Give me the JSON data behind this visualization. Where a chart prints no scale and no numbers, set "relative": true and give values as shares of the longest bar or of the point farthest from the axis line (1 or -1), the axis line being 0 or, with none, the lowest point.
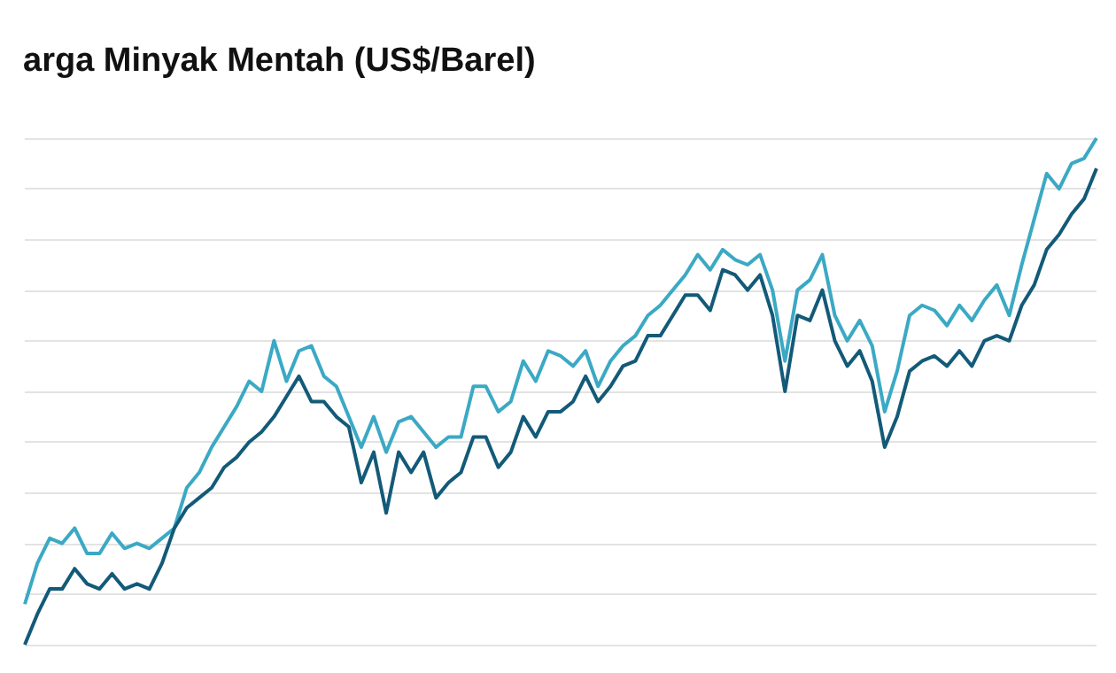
{
  "chart_data": {
    "type": "line",
    "title": "arga Minyak Mentah (US$/Barel)",
    "relative": true,
    "grid": "y",
    "marker": "none",
    "line_style": "solid",
    "categories": [
      null,
      null,
      null,
      null,
      null,
      null,
      null,
      null,
      null,
      null,
      null,
      null,
      null,
      null,
      null,
      null,
      null,
      null,
      null,
      null,
      null,
      null,
      null,
      null,
      null,
      null,
      null,
      null,
      null,
      null,
      null,
      null,
      null,
      null,
      null,
      null,
      null,
      null,
      null,
      null,
      null,
      null,
      null,
      null,
      null,
      null,
      null,
      null,
      null,
      null,
      null,
      null,
      null,
      null,
      null,
      null,
      null,
      null,
      null,
      null,
      null,
      null,
      null,
      null,
      null,
      null,
      null,
      null,
      null,
      null,
      null,
      null,
      null,
      null,
      null,
      null,
      null,
      null,
      null,
      null,
      null,
      null,
      null,
      null,
      null,
      null,
      null
    ],
    "series": [
      {
        "color": "#3ba9c4",
        "values": [
          0.08,
          0.16,
          0.21,
          0.2,
          0.23,
          0.18,
          0.18,
          0.22,
          0.19,
          0.2,
          0.19,
          0.21,
          0.23,
          0.31,
          0.34,
          0.39,
          0.43,
          0.47,
          0.52,
          0.5,
          0.6,
          0.52,
          0.58,
          0.59,
          0.53,
          0.51,
          0.45,
          0.39,
          0.45,
          0.38,
          0.44,
          0.45,
          0.42,
          0.39,
          0.41,
          0.41,
          0.51,
          0.51,
          0.46,
          0.48,
          0.56,
          0.52,
          0.58,
          0.57,
          0.55,
          0.58,
          0.51,
          0.56,
          0.59,
          0.61,
          0.65,
          0.67,
          0.7,
          0.73,
          0.77,
          0.74,
          0.78,
          0.76,
          0.75,
          0.77,
          0.7,
          0.56,
          0.7,
          0.72,
          0.77,
          0.65,
          0.6,
          0.64,
          0.59,
          0.46,
          0.54,
          0.65,
          0.67,
          0.66,
          0.63,
          0.67,
          0.64,
          0.68,
          0.71,
          0.65,
          0.75,
          0.84,
          0.93,
          0.9,
          0.95,
          0.96,
          1
        ]
      },
      {
        "color": "#135a78",
        "values": [
          0,
          0.06,
          0.11,
          0.11,
          0.15,
          0.12,
          0.11,
          0.14,
          0.11,
          0.12,
          0.11,
          0.16,
          0.23,
          0.27,
          0.29,
          0.31,
          0.35,
          0.37,
          0.4,
          0.42,
          0.45,
          0.49,
          0.53,
          0.48,
          0.48,
          0.45,
          0.43,
          0.32,
          0.38,
          0.26,
          0.38,
          0.34,
          0.38,
          0.29,
          0.32,
          0.34,
          0.41,
          0.41,
          0.35,
          0.38,
          0.45,
          0.41,
          0.46,
          0.46,
          0.48,
          0.53,
          0.48,
          0.51,
          0.55,
          0.56,
          0.61,
          0.61,
          0.65,
          0.69,
          0.69,
          0.66,
          0.74,
          0.73,
          0.7,
          0.73,
          0.65,
          0.5,
          0.65,
          0.64,
          0.7,
          0.6,
          0.55,
          0.58,
          0.52,
          0.39,
          0.45,
          0.54,
          0.56,
          0.57,
          0.55,
          0.58,
          0.55,
          0.6,
          0.61,
          0.6,
          0.67,
          0.71,
          0.78,
          0.81,
          0.85,
          0.88,
          0.94
        ]
      }
    ]
  }
}
